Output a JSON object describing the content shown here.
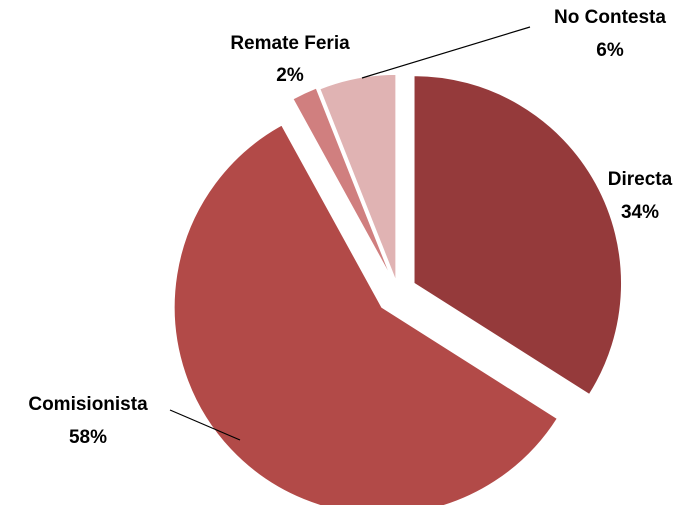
{
  "chart_data": {
    "type": "pie",
    "categories": [
      "Directa",
      "Comisionista",
      "Remate Feria",
      "No Contesta"
    ],
    "values": [
      34,
      58,
      2,
      6
    ],
    "value_labels": [
      "34%",
      "58%",
      "2%",
      "6%"
    ],
    "colors": [
      "#953a3b",
      "#b24a48",
      "#d07f7f",
      "#e0b3b3"
    ]
  }
}
